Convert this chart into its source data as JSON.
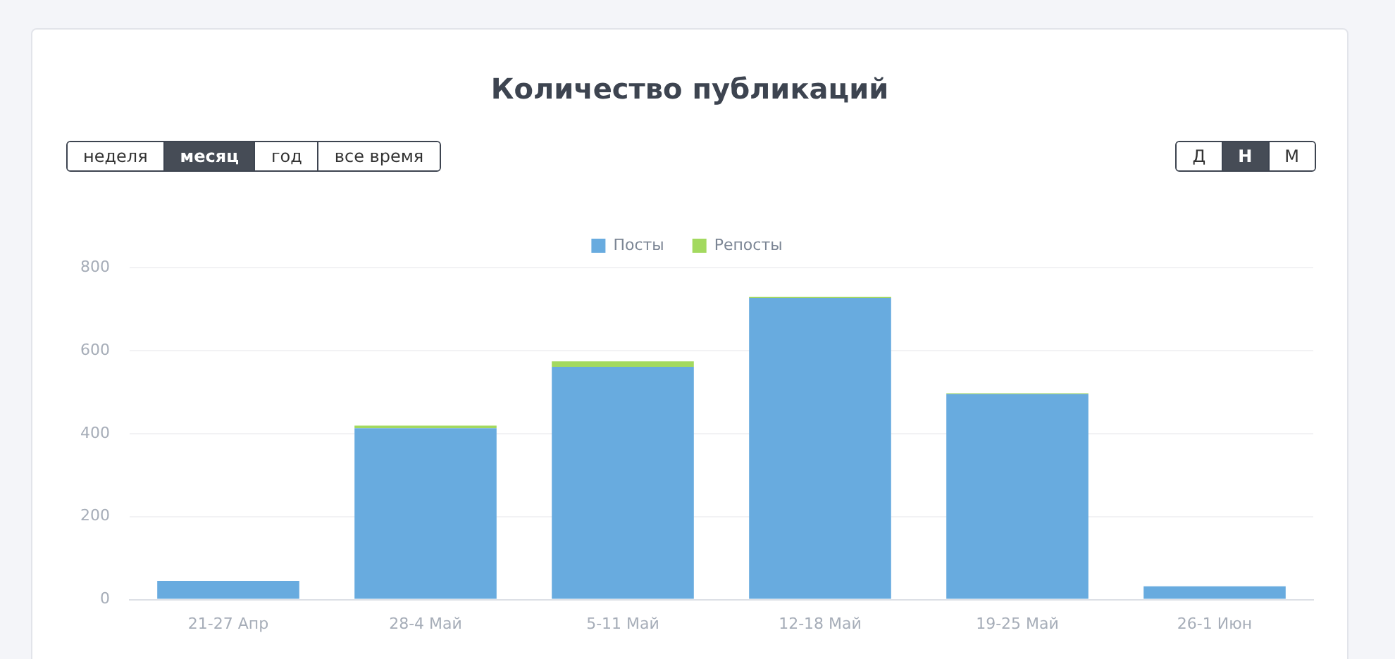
{
  "chart_data": {
    "type": "bar",
    "title": "Количество публикаций",
    "stacked": true,
    "categories": [
      "21-27 Апр",
      "28-4 Май",
      "5-11 Май",
      "12-18 Май",
      "19-25 Май",
      "26-1 Июн"
    ],
    "series": [
      {
        "name": "Посты",
        "color": "#68abdf",
        "values": [
          45,
          413,
          561,
          727,
          495,
          32
        ]
      },
      {
        "name": "Репосты",
        "color": "#a3d95f",
        "values": [
          0,
          6,
          13,
          2,
          2,
          null
        ]
      }
    ],
    "ylim": [
      0,
      800
    ],
    "yticks": [
      0,
      200,
      400,
      600,
      800
    ],
    "grid": "y",
    "legend": "top",
    "annotations": [
      "неделя",
      "месяц",
      "год",
      "все время",
      "Д",
      "Н",
      "М"
    ]
  }
}
